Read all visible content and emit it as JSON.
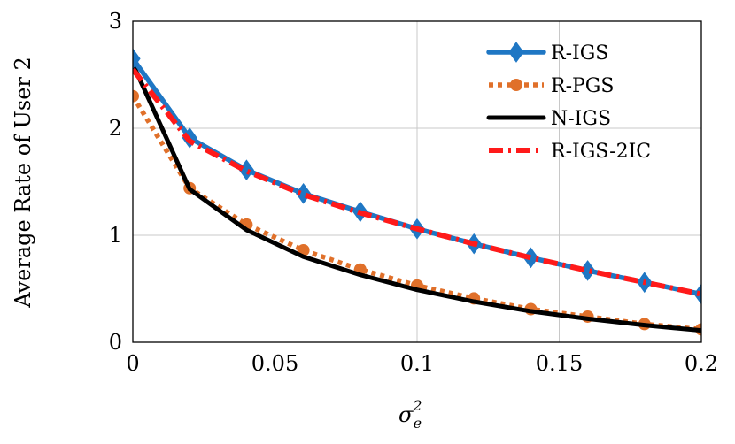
{
  "chart_data": {
    "type": "line",
    "title": "",
    "xlabel": "σ",
    "xlabel_sup": "2",
    "xlabel_sub": "e",
    "ylabel": "Average Rate of User 2",
    "xlim": [
      0,
      0.2
    ],
    "ylim": [
      0,
      3
    ],
    "xticks": [
      0,
      0.05,
      0.1,
      0.15,
      0.2
    ],
    "xtick_labels": [
      "0",
      "0.05",
      "0.1",
      "0.15",
      "0.2"
    ],
    "yticks": [
      0,
      1,
      2,
      3
    ],
    "ytick_labels": [
      "0",
      "1",
      "2",
      "3"
    ],
    "grid": true,
    "legend_position": "top-right",
    "x": [
      0,
      0.02,
      0.04,
      0.06,
      0.08,
      0.1,
      0.12,
      0.14,
      0.16,
      0.18,
      0.2
    ],
    "series": [
      {
        "name": "R-IGS",
        "color": "#1f77c4",
        "marker": "diamond",
        "line": "solid",
        "values": [
          2.65,
          1.91,
          1.61,
          1.39,
          1.22,
          1.06,
          0.92,
          0.79,
          0.67,
          0.56,
          0.45
        ]
      },
      {
        "name": "R-PGS",
        "color": "#e0702a",
        "marker": "circle",
        "line": "dotted",
        "values": [
          2.3,
          1.44,
          1.1,
          0.86,
          0.68,
          0.53,
          0.41,
          0.31,
          0.24,
          0.17,
          0.12
        ]
      },
      {
        "name": "N-IGS",
        "color": "#000000",
        "marker": "none",
        "line": "solid",
        "values": [
          2.6,
          1.43,
          1.05,
          0.8,
          0.63,
          0.49,
          0.38,
          0.29,
          0.22,
          0.16,
          0.11
        ]
      },
      {
        "name": "R-IGS-2IC",
        "color": "#ff1a1a",
        "marker": "none",
        "line": "dashdot",
        "values": [
          2.55,
          1.88,
          1.6,
          1.38,
          1.21,
          1.06,
          0.92,
          0.79,
          0.67,
          0.56,
          0.45
        ]
      }
    ]
  }
}
